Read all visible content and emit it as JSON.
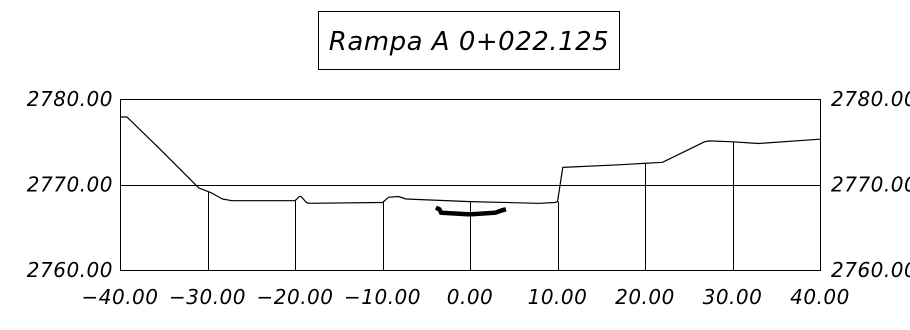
{
  "title": "Rampa A 0+022.125",
  "chart_data": {
    "type": "line",
    "xlim": [
      -40,
      40
    ],
    "ylim": [
      2760,
      2780
    ],
    "x_tick_labels": [
      "−40.00",
      "−30.00",
      "−20.00",
      "−10.00",
      "0.00",
      "10.00",
      "20.00",
      "30.00",
      "40.00"
    ],
    "y_tick_labels": [
      "2780.00",
      "2770.00",
      "2760.00"
    ],
    "y_ticks": [
      2780,
      2770,
      2760
    ],
    "reference_lines": [
      2770
    ],
    "vertical_marker_x": [
      -30,
      -20,
      -10,
      0,
      10,
      20,
      30
    ],
    "series": [
      {
        "role": "ground",
        "x": [
          -40,
          -39.2,
          -35.5,
          -31.0,
          -29.5,
          -28.3,
          -27.2,
          -20.0,
          -19.5,
          -19.3,
          -18.7,
          -18.4,
          -10.0,
          -9.3,
          -8.2,
          -7.3,
          0,
          7.7,
          8.0,
          9.7,
          10.0,
          10.6,
          17.0,
          22.0,
          26.8,
          27.3,
          30.0,
          33.0,
          40.0
        ],
        "y": [
          2777.9,
          2777.9,
          2774.2,
          2769.6,
          2769.0,
          2768.3,
          2768.1,
          2768.1,
          2768.6,
          2768.6,
          2767.9,
          2767.8,
          2767.9,
          2768.5,
          2768.6,
          2768.3,
          2768.0,
          2767.8,
          2767.8,
          2767.9,
          2768.0,
          2772.0,
          2772.3,
          2772.6,
          2775.0,
          2775.1,
          2775.0,
          2774.8,
          2775.3
        ]
      },
      {
        "role": "pavement",
        "x": [
          -3.9,
          -3.5,
          -3.3,
          0,
          2.9,
          3.7,
          4.1
        ],
        "y": [
          2767.3,
          2767.1,
          2766.7,
          2766.5,
          2766.7,
          2767.0,
          2767.1
        ]
      }
    ]
  }
}
